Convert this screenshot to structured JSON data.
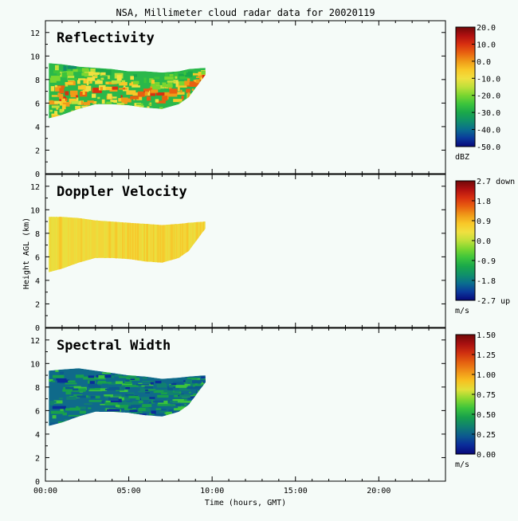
{
  "title": "NSA, Millimeter cloud radar data for 20020119",
  "x_axis_label": "Time (hours, GMT)",
  "y_axis_label": "Height AGL (km)",
  "x_ticks": [
    "00:00",
    "05:00",
    "10:00",
    "15:00",
    "20:00"
  ],
  "y_ticks": [
    "0",
    "2",
    "4",
    "6",
    "8",
    "10",
    "12"
  ],
  "chart_data": [
    {
      "type": "heatmap",
      "title": "Reflectivity",
      "xlabel": "Time (hours, GMT)",
      "ylabel": "Height AGL (km)",
      "xlim": [
        0,
        24
      ],
      "ylim": [
        0,
        13
      ],
      "colorbar": {
        "unit": "dBZ",
        "range": [
          -50,
          20
        ],
        "tick_labels": [
          "20.0",
          "10.0",
          "0.0",
          "-10.0",
          "-20.0",
          "-30.0",
          "-40.0",
          "-50.0"
        ]
      },
      "echo": {
        "time_hours": [
          0.2,
          1.0,
          2.0,
          3.0,
          4.0,
          5.0,
          6.0,
          7.0,
          8.0,
          8.6,
          9.6
        ],
        "base_km": [
          4.7,
          5.0,
          5.5,
          5.9,
          5.9,
          5.8,
          5.6,
          5.5,
          5.9,
          6.5,
          8.4
        ],
        "top_km": [
          9.4,
          9.3,
          9.1,
          9.0,
          8.9,
          8.7,
          8.7,
          8.6,
          8.7,
          8.9,
          9.0
        ],
        "dominant_value": -10
      }
    },
    {
      "type": "heatmap",
      "title": "Doppler Velocity",
      "xlabel": "Time (hours, GMT)",
      "ylabel": "Height AGL (km)",
      "xlim": [
        0,
        24
      ],
      "ylim": [
        0,
        13
      ],
      "colorbar": {
        "unit": "m/s",
        "range": [
          -2.7,
          2.7
        ],
        "tick_labels": [
          "2.7 down",
          "1.8",
          "0.9",
          "0.0",
          "-0.9",
          "-1.8",
          "-2.7 up"
        ]
      },
      "echo": {
        "time_hours": [
          0.2,
          1.0,
          2.0,
          3.0,
          4.0,
          5.0,
          6.0,
          7.0,
          8.0,
          8.6,
          9.6
        ],
        "base_km": [
          4.7,
          5.0,
          5.5,
          5.9,
          5.9,
          5.8,
          5.6,
          5.5,
          5.9,
          6.5,
          8.4
        ],
        "top_km": [
          9.4,
          9.4,
          9.3,
          9.1,
          9.0,
          8.9,
          8.8,
          8.7,
          8.8,
          8.9,
          9.0
        ],
        "dominant_value": 0.3
      }
    },
    {
      "type": "heatmap",
      "title": "Spectral Width",
      "xlabel": "Time (hours, GMT)",
      "ylabel": "Height AGL (km)",
      "xlim": [
        0,
        24
      ],
      "ylim": [
        0,
        13
      ],
      "colorbar": {
        "unit": "m/s",
        "range": [
          0,
          1.5
        ],
        "tick_labels": [
          "1.50",
          "1.25",
          "1.00",
          "0.75",
          "0.50",
          "0.25",
          "0.00"
        ]
      },
      "echo": {
        "time_hours": [
          0.2,
          1.0,
          2.0,
          3.0,
          4.0,
          5.0,
          6.0,
          7.0,
          8.0,
          8.6,
          9.6
        ],
        "base_km": [
          4.7,
          5.0,
          5.5,
          5.9,
          5.9,
          5.8,
          5.6,
          5.5,
          5.9,
          6.5,
          8.4
        ],
        "top_km": [
          9.4,
          9.5,
          9.6,
          9.4,
          9.2,
          9.0,
          8.9,
          8.7,
          8.8,
          8.9,
          9.0
        ],
        "dominant_value": 0.2
      }
    }
  ]
}
